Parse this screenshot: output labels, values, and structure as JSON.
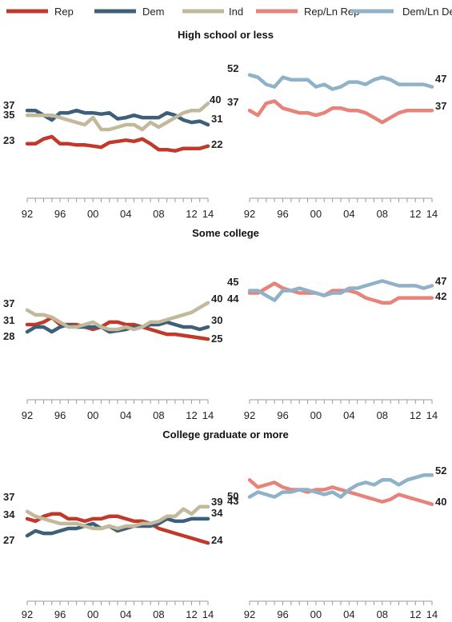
{
  "legend": [
    {
      "key": "rep",
      "label": "Rep",
      "color": "#c0392b"
    },
    {
      "key": "dem",
      "label": "Dem",
      "color": "#3d5f7a"
    },
    {
      "key": "ind",
      "label": "Ind",
      "color": "#c2b99a"
    },
    {
      "key": "lnrep",
      "label": "Rep/Ln Rep",
      "color": "#e8837a"
    },
    {
      "key": "lndem",
      "label": "Dem/Ln Dem",
      "color": "#8fb2c9"
    }
  ],
  "chart_data": [
    {
      "type": "line",
      "title": "High school or less",
      "x": [
        1992,
        1993,
        1994,
        1995,
        1996,
        1997,
        1998,
        1999,
        2000,
        2001,
        2002,
        2003,
        2004,
        2005,
        2006,
        2007,
        2008,
        2009,
        2010,
        2011,
        2012,
        2013,
        2014
      ],
      "xticks": [
        "92",
        "96",
        "00",
        "04",
        "08",
        "12",
        "14"
      ],
      "ylim": [
        0,
        60
      ],
      "series": [
        {
          "key": "rep",
          "values": [
            23,
            23,
            25,
            26,
            23,
            23,
            22.5,
            22.5,
            22,
            21.5,
            23.5,
            24,
            24.5,
            24,
            25,
            23,
            20.5,
            20.5,
            20,
            21,
            21,
            21,
            22
          ]
        },
        {
          "key": "dem",
          "values": [
            37,
            37,
            35,
            33,
            36,
            36,
            37,
            36,
            36,
            35.5,
            36,
            33.5,
            34,
            35,
            34,
            34,
            34,
            36,
            35,
            33,
            32,
            32.5,
            31
          ]
        },
        {
          "key": "ind",
          "values": [
            35,
            35,
            35,
            35,
            34,
            33,
            32,
            31,
            34,
            29,
            29,
            30,
            31,
            31,
            29,
            32,
            30,
            32,
            34,
            36,
            37,
            37,
            40
          ]
        }
      ],
      "end_labels": {
        "rep": [
          "23",
          "22"
        ],
        "dem": [
          "37",
          "31"
        ],
        "ind": [
          "35",
          "40"
        ]
      }
    },
    {
      "type": "line",
      "title": "High school or less",
      "x": [
        1992,
        1993,
        1994,
        1995,
        1996,
        1997,
        1998,
        1999,
        2000,
        2001,
        2002,
        2003,
        2004,
        2005,
        2006,
        2007,
        2008,
        2009,
        2010,
        2011,
        2012,
        2013,
        2014
      ],
      "xticks": [
        "92",
        "96",
        "00",
        "04",
        "08",
        "12",
        "14"
      ],
      "ylim": [
        0,
        60
      ],
      "series": [
        {
          "key": "lnrep",
          "values": [
            37,
            35,
            40,
            41,
            38,
            37,
            36,
            36,
            35,
            36,
            38,
            38,
            37,
            37,
            36,
            34,
            32,
            34,
            36,
            37,
            37,
            37,
            37
          ]
        },
        {
          "key": "lndem",
          "values": [
            52,
            51,
            48,
            47,
            51,
            50,
            50,
            50,
            47,
            48,
            46,
            47,
            49,
            49,
            48,
            50,
            51,
            50,
            48,
            48,
            48,
            48,
            47
          ]
        }
      ],
      "end_labels": {
        "lnrep": [
          "37",
          "37"
        ],
        "lndem": [
          "52",
          "47"
        ]
      }
    },
    {
      "type": "line",
      "title": "Some college",
      "x": [
        1992,
        1993,
        1994,
        1995,
        1996,
        1997,
        1998,
        1999,
        2000,
        2001,
        2002,
        2003,
        2004,
        2005,
        2006,
        2007,
        2008,
        2009,
        2010,
        2011,
        2012,
        2013,
        2014
      ],
      "xticks": [
        "92",
        "96",
        "00",
        "04",
        "08",
        "12",
        "14"
      ],
      "ylim": [
        0,
        60
      ],
      "series": [
        {
          "key": "rep",
          "values": [
            31,
            31,
            32,
            34,
            31,
            31,
            31,
            30,
            29,
            30,
            32,
            32,
            31,
            31,
            30,
            29,
            28,
            27,
            27,
            26.5,
            26,
            25.5,
            25
          ]
        },
        {
          "key": "dem",
          "values": [
            28,
            30,
            30,
            28,
            30,
            31,
            30,
            30,
            30,
            30,
            28,
            28.5,
            29,
            30,
            30,
            31,
            31,
            32,
            31,
            30,
            30,
            29,
            30
          ]
        },
        {
          "key": "ind",
          "values": [
            37,
            35,
            35,
            34,
            32,
            30,
            30,
            31,
            32,
            30,
            29,
            29,
            30,
            29,
            30,
            32,
            32,
            33,
            34,
            35,
            36,
            38,
            40
          ]
        }
      ],
      "end_labels": {
        "rep": [
          "31",
          "25"
        ],
        "dem": [
          "28",
          "30"
        ],
        "ind": [
          "37",
          "40"
        ]
      }
    },
    {
      "type": "line",
      "title": "Some college",
      "x": [
        1992,
        1993,
        1994,
        1995,
        1996,
        1997,
        1998,
        1999,
        2000,
        2001,
        2002,
        2003,
        2004,
        2005,
        2006,
        2007,
        2008,
        2009,
        2010,
        2011,
        2012,
        2013,
        2014
      ],
      "xticks": [
        "92",
        "96",
        "00",
        "04",
        "08",
        "12",
        "14"
      ],
      "ylim": [
        0,
        60
      ],
      "series": [
        {
          "key": "lnrep",
          "values": [
            44,
            44,
            46,
            48,
            46,
            45,
            44,
            44,
            44,
            43,
            45,
            45,
            45,
            44,
            42,
            41,
            40,
            40,
            42,
            42,
            42,
            42,
            42
          ]
        },
        {
          "key": "lndem",
          "values": [
            45,
            45,
            43,
            41,
            45,
            45,
            46,
            45,
            44,
            43,
            44,
            44,
            46,
            46,
            47,
            48,
            49,
            48,
            47,
            47,
            47,
            46,
            47
          ]
        }
      ],
      "end_labels": {
        "lnrep": [
          "44",
          "42"
        ],
        "lndem": [
          "45",
          "47"
        ]
      }
    },
    {
      "type": "line",
      "title": "College graduate or more",
      "x": [
        1992,
        1993,
        1994,
        1995,
        1996,
        1997,
        1998,
        1999,
        2000,
        2001,
        2002,
        2003,
        2004,
        2005,
        2006,
        2007,
        2008,
        2009,
        2010,
        2011,
        2012,
        2013,
        2014
      ],
      "xticks": [
        "92",
        "96",
        "00",
        "04",
        "08",
        "12",
        "14"
      ],
      "ylim": [
        0,
        60
      ],
      "series": [
        {
          "key": "rep",
          "values": [
            34,
            33,
            35,
            36,
            36,
            34,
            34,
            33,
            34,
            34,
            35,
            35,
            34,
            33,
            33,
            32,
            30,
            29,
            28,
            27,
            26,
            25,
            24
          ]
        },
        {
          "key": "dem",
          "values": [
            27,
            29,
            28,
            28,
            29,
            30,
            30,
            31,
            32,
            30,
            31,
            29,
            30,
            31,
            31,
            31,
            32,
            34,
            33,
            33,
            34,
            34,
            34
          ]
        },
        {
          "key": "ind",
          "values": [
            37,
            35,
            34,
            33,
            32,
            32,
            32,
            31,
            30,
            30,
            31,
            30,
            31,
            31,
            32,
            32,
            33,
            35,
            35,
            38,
            36,
            39,
            39
          ]
        }
      ],
      "end_labels": {
        "rep": [
          "34",
          "24"
        ],
        "dem": [
          "27",
          "34"
        ],
        "ind": [
          "37",
          "39"
        ]
      }
    },
    {
      "type": "line",
      "title": "College graduate or more",
      "x": [
        1992,
        1993,
        1994,
        1995,
        1996,
        1997,
        1998,
        1999,
        2000,
        2001,
        2002,
        2003,
        2004,
        2005,
        2006,
        2007,
        2008,
        2009,
        2010,
        2011,
        2012,
        2013,
        2014
      ],
      "xticks": [
        "92",
        "96",
        "00",
        "04",
        "08",
        "12",
        "14"
      ],
      "ylim": [
        0,
        60
      ],
      "series": [
        {
          "key": "lnrep",
          "values": [
            50,
            47,
            48,
            49,
            47,
            46,
            46,
            45,
            46,
            46,
            47,
            46,
            45,
            44,
            43,
            42,
            41,
            42,
            44,
            43,
            42,
            41,
            40
          ]
        },
        {
          "key": "lndem",
          "values": [
            43,
            45,
            44,
            43,
            45,
            45,
            46,
            46,
            45,
            44,
            45,
            43,
            46,
            48,
            49,
            48,
            50,
            50,
            48,
            50,
            51,
            52,
            52
          ]
        }
      ],
      "end_labels": {
        "lnrep": [
          "50",
          "40"
        ],
        "lndem": [
          "43",
          "52"
        ]
      }
    }
  ]
}
